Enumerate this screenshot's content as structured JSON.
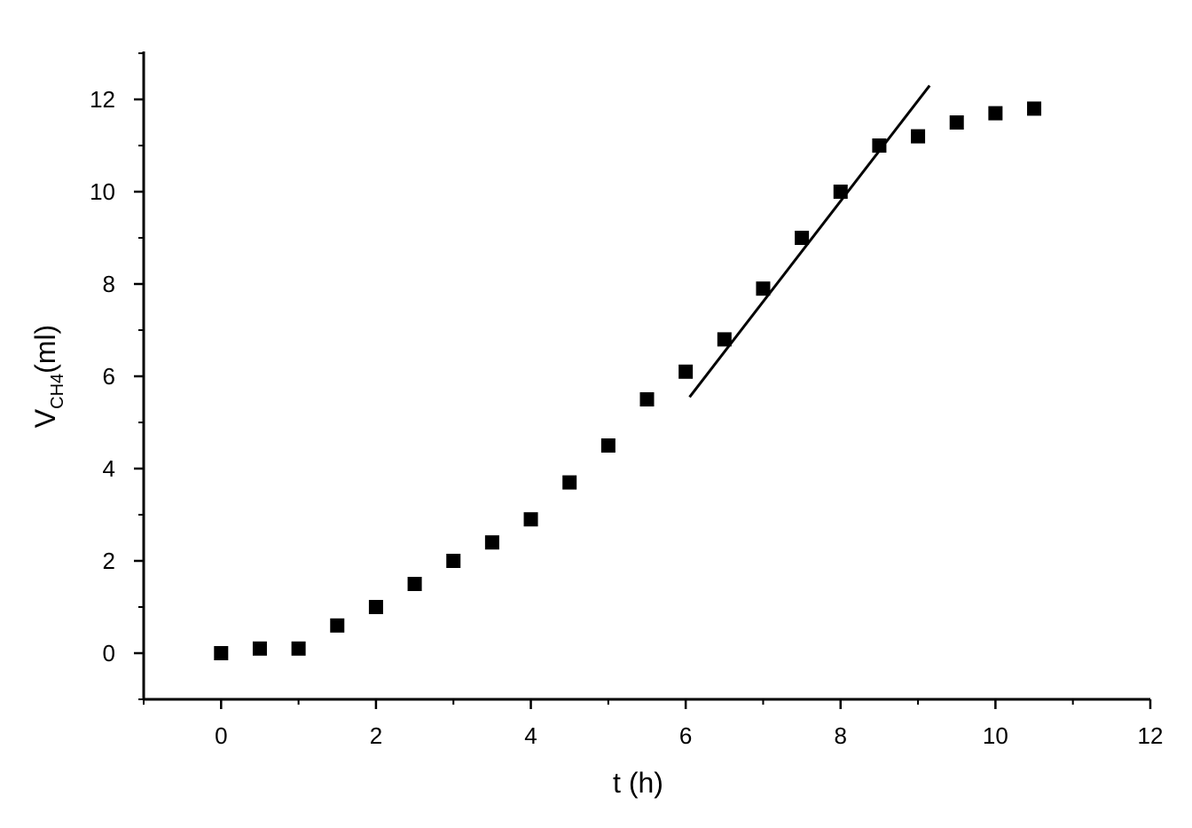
{
  "chart_data": {
    "type": "scatter",
    "title": "",
    "xlabel": "t (h)",
    "ylabel": {
      "main": "V",
      "subscript": "CH4",
      "suffix": "(ml)"
    },
    "xlim": [
      -1,
      12
    ],
    "ylim": [
      -1,
      13
    ],
    "x_ticks": [
      0,
      2,
      4,
      6,
      8,
      10,
      12
    ],
    "y_ticks": [
      0,
      2,
      4,
      6,
      8,
      10,
      12
    ],
    "x_minor_ticks": [
      -1,
      1,
      3,
      5,
      7,
      9,
      11
    ],
    "y_minor_ticks": [
      -1,
      1,
      3,
      5,
      7,
      9,
      11,
      13
    ],
    "grid": false,
    "legend": "none",
    "marker": "filled-square",
    "marker_color": "#000000",
    "series": [
      {
        "x": [
          0,
          0.5,
          1,
          1.5,
          2,
          2.5,
          3,
          3.5,
          4,
          4.5,
          5,
          5.5,
          6,
          6.5,
          7,
          7.5,
          8,
          8.5,
          9,
          9.5,
          10,
          10.5
        ],
        "y": [
          0,
          0.1,
          0.1,
          0.6,
          1.0,
          1.5,
          2.0,
          2.4,
          2.9,
          3.7,
          4.5,
          5.5,
          6.1,
          6.8,
          7.9,
          9.0,
          10.0,
          11.0,
          11.2,
          11.5,
          11.7,
          11.8
        ]
      }
    ],
    "fit_line": {
      "x": [
        6.05,
        9.15
      ],
      "y": [
        5.55,
        12.3
      ],
      "color": "#000000"
    }
  }
}
